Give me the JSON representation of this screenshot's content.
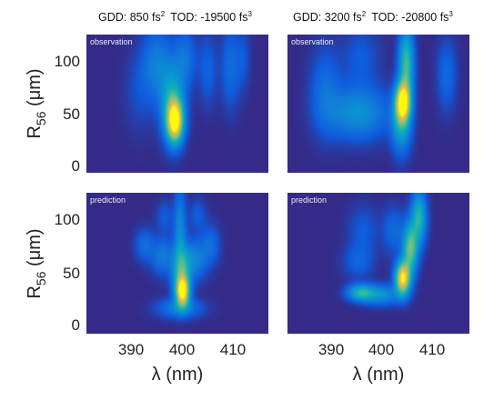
{
  "chart_data": {
    "type": "heatmap",
    "layout": "2x2 grid",
    "colormap": "parula",
    "column_titles": [
      {
        "gdd_prefix": "GDD: 850 fs",
        "gdd_exp": "2",
        "tod_prefix": "TOD: -19500 fs",
        "tod_exp": "3"
      },
      {
        "gdd_prefix": "GDD: 3200 fs",
        "gdd_exp": "2",
        "tod_prefix": "TOD: -20800 fs",
        "tod_exp": "3"
      }
    ],
    "ylabel": {
      "main": "R",
      "sub": "56",
      "unit": " (μm)"
    },
    "xlabel": "λ (nm)",
    "x_range": [
      382,
      418
    ],
    "y_range": [
      -5,
      122
    ],
    "x_ticks": [
      390,
      400,
      410
    ],
    "y_ticks": [
      0,
      50,
      100
    ],
    "panels": [
      {
        "row": 0,
        "col": 0,
        "label": "observation",
        "blobs": [
          {
            "x": 399.5,
            "y": 42,
            "sx": 1.1,
            "sy": 13,
            "amp": 1.0
          },
          {
            "x": 399.0,
            "y": 60,
            "sx": 1.6,
            "sy": 22,
            "amp": 0.42
          },
          {
            "x": 396.0,
            "y": 95,
            "sx": 2.0,
            "sy": 22,
            "amp": 0.22
          },
          {
            "x": 401.5,
            "y": 100,
            "sx": 1.5,
            "sy": 18,
            "amp": 0.18
          },
          {
            "x": 406.0,
            "y": 90,
            "sx": 1.2,
            "sy": 22,
            "amp": 0.12
          },
          {
            "x": 410.5,
            "y": 92,
            "sx": 1.3,
            "sy": 25,
            "amp": 0.15
          },
          {
            "x": 413.0,
            "y": 100,
            "sx": 1.0,
            "sy": 20,
            "amp": 0.08
          },
          {
            "x": 392.5,
            "y": 70,
            "sx": 2.0,
            "sy": 25,
            "amp": 0.07
          }
        ]
      },
      {
        "row": 0,
        "col": 1,
        "label": "observation",
        "blobs": [
          {
            "x": 404.8,
            "y": 60,
            "sx": 1.0,
            "sy": 12,
            "amp": 1.0
          },
          {
            "x": 405.5,
            "y": 95,
            "sx": 1.0,
            "sy": 22,
            "amp": 0.55
          },
          {
            "x": 404.5,
            "y": 40,
            "sx": 1.3,
            "sy": 18,
            "amp": 0.38
          },
          {
            "x": 396.0,
            "y": 50,
            "sx": 4.0,
            "sy": 16,
            "amp": 0.3
          },
          {
            "x": 389.5,
            "y": 70,
            "sx": 2.0,
            "sy": 26,
            "amp": 0.16
          },
          {
            "x": 396.5,
            "y": 100,
            "sx": 2.5,
            "sy": 20,
            "amp": 0.1
          },
          {
            "x": 413.5,
            "y": 85,
            "sx": 1.3,
            "sy": 22,
            "amp": 0.14
          }
        ]
      },
      {
        "row": 1,
        "col": 0,
        "label": "prediction",
        "blobs": [
          {
            "x": 401.0,
            "y": 33,
            "sx": 0.9,
            "sy": 9,
            "amp": 1.0
          },
          {
            "x": 400.8,
            "y": 52,
            "sx": 1.3,
            "sy": 15,
            "amp": 0.45
          },
          {
            "x": 400.5,
            "y": 90,
            "sx": 0.8,
            "sy": 26,
            "amp": 0.25
          },
          {
            "x": 397.0,
            "y": 65,
            "sx": 1.5,
            "sy": 11,
            "amp": 0.2
          },
          {
            "x": 403.5,
            "y": 62,
            "sx": 1.6,
            "sy": 12,
            "amp": 0.22
          },
          {
            "x": 393.5,
            "y": 75,
            "sx": 1.3,
            "sy": 10,
            "amp": 0.15
          },
          {
            "x": 406.5,
            "y": 75,
            "sx": 1.3,
            "sy": 12,
            "amp": 0.15
          },
          {
            "x": 397.5,
            "y": 100,
            "sx": 1.2,
            "sy": 10,
            "amp": 0.1
          },
          {
            "x": 404.0,
            "y": 102,
            "sx": 1.2,
            "sy": 10,
            "amp": 0.1
          },
          {
            "x": 400.5,
            "y": 18,
            "sx": 3.0,
            "sy": 6,
            "amp": 0.22
          }
        ]
      },
      {
        "row": 1,
        "col": 1,
        "label": "prediction",
        "blobs": [
          {
            "x": 404.8,
            "y": 45,
            "sx": 1.0,
            "sy": 10,
            "amp": 1.0
          },
          {
            "x": 406.3,
            "y": 72,
            "sx": 1.0,
            "sy": 15,
            "amp": 0.62
          },
          {
            "x": 408.0,
            "y": 100,
            "sx": 1.0,
            "sy": 16,
            "amp": 0.48
          },
          {
            "x": 396.5,
            "y": 32,
            "sx": 1.8,
            "sy": 5,
            "amp": 0.45
          },
          {
            "x": 400.5,
            "y": 30,
            "sx": 2.5,
            "sy": 6,
            "amp": 0.3
          },
          {
            "x": 396.0,
            "y": 60,
            "sx": 2.0,
            "sy": 10,
            "amp": 0.12
          },
          {
            "x": 403.0,
            "y": 88,
            "sx": 1.5,
            "sy": 14,
            "amp": 0.14
          },
          {
            "x": 397.0,
            "y": 88,
            "sx": 2.0,
            "sy": 15,
            "amp": 0.1
          }
        ]
      }
    ]
  }
}
